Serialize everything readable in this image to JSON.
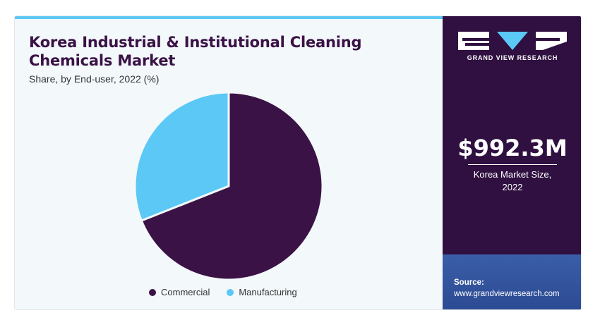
{
  "header": {
    "title_line1": "Korea Industrial & Institutional Cleaning",
    "title_line2": "Chemicals Market",
    "subtitle": "Share, by End-user, 2022 (%)"
  },
  "chart_data": {
    "type": "pie",
    "title": "Korea Industrial & Institutional Cleaning Chemicals Market",
    "subtitle": "Share, by End-user, 2022 (%)",
    "categories": [
      "Commercial",
      "Manufacturing"
    ],
    "values": [
      69,
      31
    ],
    "colors": [
      "#3a1245",
      "#5bc8f5"
    ],
    "legend_position": "bottom"
  },
  "sidebar": {
    "brand": "GRAND VIEW RESEARCH",
    "market_value": "$992.3M",
    "market_label_line1": "Korea Market Size,",
    "market_label_line2": "2022",
    "source_label": "Source:",
    "source_url": "www.grandviewresearch.com"
  }
}
